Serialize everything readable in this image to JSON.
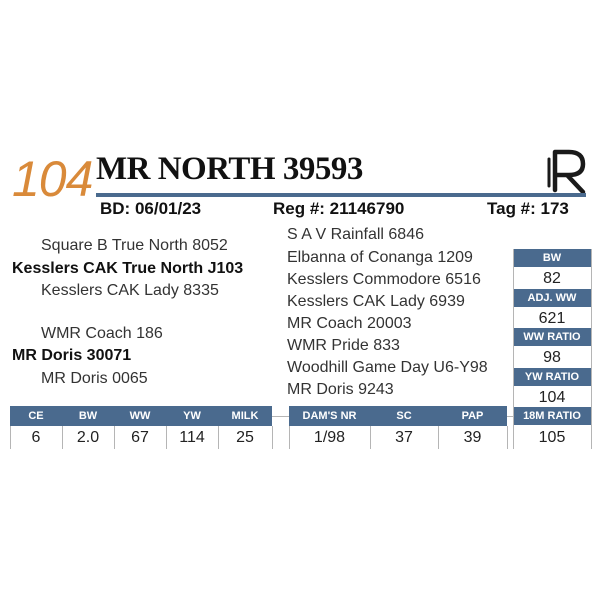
{
  "lot_number": "104",
  "animal_name": "MR NORTH 39593",
  "logo_label": "R",
  "birth_date": "BD: 06/01/23",
  "registration": "Reg #: 21146790",
  "tag": "Tag #: 173",
  "colors": {
    "accent_blue": "#4a6a8e",
    "lot_orange": "#d98a3a"
  },
  "pedigree": {
    "sire_sire": "Square B True North 8052",
    "sire": "Kesslers CAK True North J103",
    "sire_dam": "Kesslers CAK Lady 8335",
    "dam_sire": "WMR Coach 186",
    "dam": "MR Doris 30071",
    "dam_dam": "MR Doris 0065"
  },
  "extended_pedigree": [
    "S A V Rainfall 6846",
    "Elbanna of Conanga 1209",
    "Kesslers Commodore 6516",
    "Kesslers CAK Lady 6939",
    "MR Coach 20003",
    "WMR Pride 833",
    "Woodhill Game Day U6-Y98",
    "MR Doris 9243"
  ],
  "side_stats": [
    {
      "label": "BW",
      "value": "82"
    },
    {
      "label": "ADJ. WW",
      "value": "621"
    },
    {
      "label": "WW RATIO",
      "value": "98"
    },
    {
      "label": "YW RATIO",
      "value": "104"
    },
    {
      "label": "18M RATIO",
      "value": "105"
    }
  ],
  "epds": [
    {
      "label": "CE",
      "value": "6"
    },
    {
      "label": "BW",
      "value": "2.0"
    },
    {
      "label": "WW",
      "value": "67"
    },
    {
      "label": "YW",
      "value": "114"
    },
    {
      "label": "MILK",
      "value": "25"
    }
  ],
  "dam_stats": [
    {
      "label": "DAM'S NR",
      "value": "1/98"
    },
    {
      "label": "SC",
      "value": "37"
    },
    {
      "label": "PAP",
      "value": "39"
    }
  ]
}
